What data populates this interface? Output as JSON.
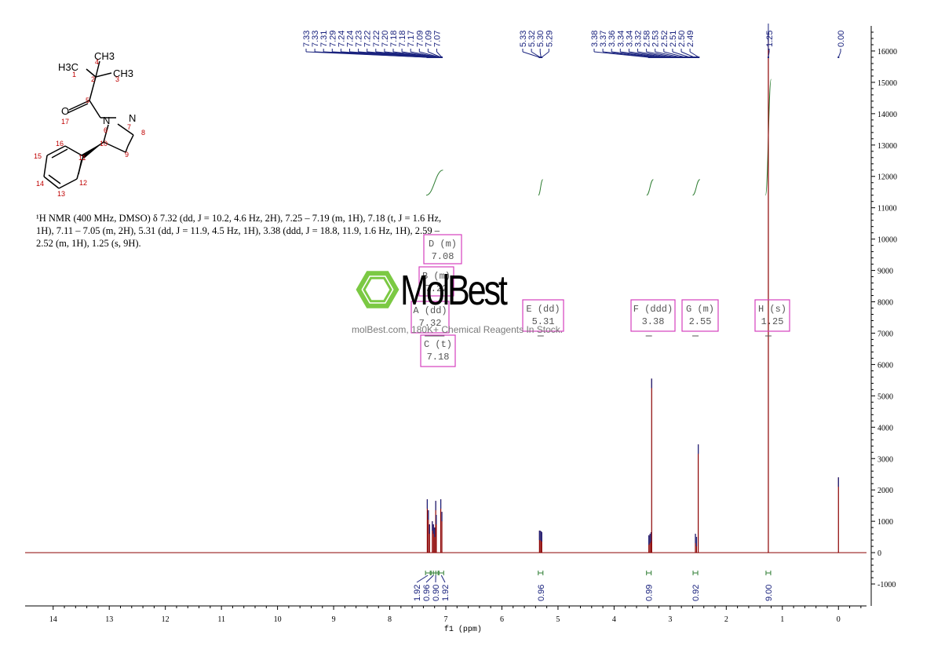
{
  "structure": {
    "methyl_label": "H3C",
    "methyl_label_top": "CH3",
    "methyl_label_right": "CH3",
    "oxygen": "O",
    "nitrogen_1": "N",
    "nitrogen_2": "N",
    "atom_numbers": [
      "1",
      "2",
      "3",
      "4",
      "5",
      "6",
      "7",
      "8",
      "9",
      "10",
      "11",
      "12",
      "13",
      "14",
      "15",
      "16",
      "17"
    ]
  },
  "description": {
    "line1": "¹H NMR (400 MHz, DMSO) δ 7.32 (dd, J = 10.2, 4.6 Hz, 2H), 7.25 – 7.19 (m, 1H), 7.18 (t, J = 1.6 Hz,",
    "line2": "1H), 7.11 – 7.05 (m, 2H), 5.31 (dd, J = 11.9, 4.5 Hz, 1H), 3.38 (ddd, J = 18.8, 11.9, 1.6 Hz, 1H), 2.59 –",
    "line3": "2.52 (m, 1H), 1.25 (s, 9H)."
  },
  "watermark": {
    "brand": "MolBest",
    "url_text": "molBest.com, 180K+ Chemical Reagents In Stock."
  },
  "chart_data": {
    "type": "line",
    "title": "",
    "xlabel": "f1 (ppm)",
    "ylabel": "",
    "xlim": [
      14.5,
      -0.5
    ],
    "ylim": [
      -1700,
      16800
    ],
    "x_ticks": [
      14,
      13,
      12,
      11,
      10,
      9,
      8,
      7,
      6,
      5,
      4,
      3,
      2,
      1,
      0
    ],
    "y_ticks": [
      -1000,
      0,
      1000,
      2000,
      3000,
      4000,
      5000,
      6000,
      7000,
      8000,
      9000,
      10000,
      11000,
      12000,
      13000,
      14000,
      15000,
      16000
    ],
    "peak_labels": [
      {
        "group": "aromatic",
        "labels": [
          "7.33",
          "7.33",
          "7.31",
          "7.29",
          "7.24",
          "7.24",
          "7.23",
          "7.22",
          "7.22",
          "7.20",
          "7.18",
          "7.18",
          "7.17",
          "7.09",
          "7.09",
          "7.07"
        ],
        "from": 7.33,
        "to": 7.07
      },
      {
        "group": "h10",
        "labels": [
          "5.33",
          "5.32",
          "5.30",
          "5.29"
        ],
        "from": 5.33,
        "to": 5.29
      },
      {
        "group": "h9",
        "labels": [
          "3.38",
          "3.37",
          "3.36",
          "3.34",
          "3.34",
          "3.32",
          "2.58",
          "2.53",
          "2.52",
          "2.51",
          "2.50",
          "2.49"
        ],
        "from": 3.38,
        "to": 2.49
      },
      {
        "group": "tbu",
        "labels": [
          "1.25"
        ],
        "from": 1.25,
        "to": 1.25
      },
      {
        "group": "tms",
        "labels": [
          "0.00"
        ],
        "from": 0.0,
        "to": 0.0
      }
    ],
    "series": [
      {
        "peaks": [
          {
            "ppm": 7.33,
            "height": 1700
          },
          {
            "ppm": 7.31,
            "height": 1350
          },
          {
            "ppm": 7.29,
            "height": 900
          },
          {
            "ppm": 7.24,
            "height": 1000
          },
          {
            "ppm": 7.22,
            "height": 900
          },
          {
            "ppm": 7.2,
            "height": 800
          },
          {
            "ppm": 7.18,
            "height": 1650
          },
          {
            "ppm": 7.17,
            "height": 1200
          },
          {
            "ppm": 7.09,
            "height": 1700
          },
          {
            "ppm": 7.07,
            "height": 1300
          },
          {
            "ppm": 5.33,
            "height": 700
          },
          {
            "ppm": 5.32,
            "height": 700
          },
          {
            "ppm": 5.3,
            "height": 680
          },
          {
            "ppm": 5.29,
            "height": 650
          },
          {
            "ppm": 3.38,
            "height": 550
          },
          {
            "ppm": 3.36,
            "height": 600
          },
          {
            "ppm": 3.34,
            "height": 650
          },
          {
            "ppm": 3.33,
            "height": 5550
          },
          {
            "ppm": 2.55,
            "height": 600
          },
          {
            "ppm": 2.53,
            "height": 500
          },
          {
            "ppm": 2.5,
            "height": 3450
          },
          {
            "ppm": 1.25,
            "height": 16600
          },
          {
            "ppm": 0.0,
            "height": 2400
          }
        ]
      }
    ],
    "integral_curves": [
      {
        "from": 7.35,
        "to": 7.05,
        "y_start": 11400,
        "y_end": 12200
      },
      {
        "from": 5.35,
        "to": 5.27,
        "y_start": 11400,
        "y_end": 11900
      },
      {
        "from": 3.42,
        "to": 3.3,
        "y_start": 11400,
        "y_end": 11900
      },
      {
        "from": 2.6,
        "to": 2.47,
        "y_start": 11400,
        "y_end": 11900
      },
      {
        "from": 1.3,
        "to": 1.2,
        "y_start": 11400,
        "y_end": 15100
      }
    ],
    "integrals": [
      {
        "value": "1.92",
        "ppm": 7.32
      },
      {
        "value": "0.96",
        "ppm": 7.22
      },
      {
        "value": "0.90",
        "ppm": 7.18
      },
      {
        "value": "1.92",
        "ppm": 7.08
      },
      {
        "value": "0.96",
        "ppm": 5.31
      },
      {
        "value": "0.99",
        "ppm": 3.38
      },
      {
        "value": "0.92",
        "ppm": 2.55
      },
      {
        "value": "9.00",
        "ppm": 1.25
      }
    ],
    "multiplets": [
      {
        "letter_line": "D (m)",
        "shift": "7.08",
        "ppm": 7.08
      },
      {
        "letter_line": "B (m)",
        "shift": "7.22",
        "ppm": 7.22
      },
      {
        "letter_line": "A (dd)",
        "shift": "7.32",
        "ppm": 7.32
      },
      {
        "letter_line": "C (t)",
        "shift": "7.18",
        "ppm": 7.18
      },
      {
        "letter_line": "E (dd)",
        "shift": "5.31",
        "ppm": 5.31
      },
      {
        "letter_line": "F (ddd)",
        "shift": "3.38",
        "ppm": 3.38
      },
      {
        "letter_line": "G (m)",
        "shift": "2.55",
        "ppm": 2.55
      },
      {
        "letter_line": "H (s)",
        "shift": "1.25",
        "ppm": 1.25
      }
    ],
    "colors": {
      "spectrum": "#8b0000",
      "peak_tips": "#1a237e",
      "integral": "#2e7d32",
      "multiplet_box": "#d63fbf",
      "axis": "#000000",
      "label": "#1a237e"
    },
    "grid": false
  }
}
